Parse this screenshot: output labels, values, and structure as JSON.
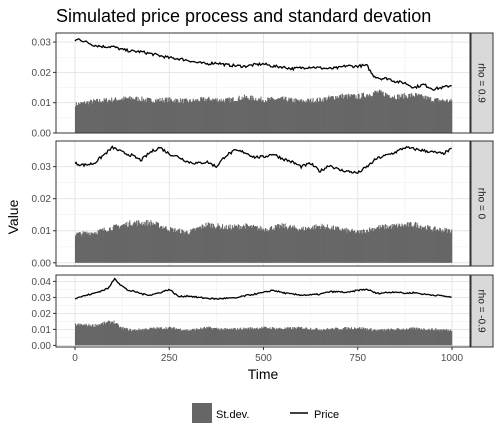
{
  "chart_data": {
    "type": "bar+line",
    "title": "Simulated price process and standard devation",
    "xlabel": "Time",
    "ylabel": "Value",
    "x_ticks": [
      0,
      250,
      500,
      750,
      1000
    ],
    "xlim": [
      0,
      1000
    ],
    "grid": true,
    "legend": {
      "position": "bottom",
      "entries": [
        {
          "name": "St.dev.",
          "kind": "bar",
          "color": "#666666"
        },
        {
          "name": "Price",
          "kind": "line",
          "color": "#000000"
        }
      ]
    },
    "panels": [
      {
        "strip_label": "rho = 0.9",
        "ylim": [
          0,
          0.033
        ],
        "y_ticks": [
          "0.00",
          "0.01",
          "0.02",
          "0.03"
        ],
        "y_tick_values": [
          0,
          0.01,
          0.02,
          0.03
        ],
        "price": {
          "x": [
            0,
            10,
            30,
            50,
            75,
            100,
            125,
            150,
            175,
            200,
            225,
            250,
            275,
            300,
            325,
            350,
            375,
            400,
            425,
            450,
            475,
            500,
            525,
            550,
            575,
            600,
            625,
            650,
            675,
            700,
            720,
            740,
            760,
            775,
            790,
            810,
            830,
            850,
            875,
            900,
            925,
            950,
            975,
            1000
          ],
          "values": [
            0.0305,
            0.031,
            0.03,
            0.029,
            0.0285,
            0.0285,
            0.0275,
            0.027,
            0.0268,
            0.0262,
            0.0255,
            0.0248,
            0.0245,
            0.024,
            0.0232,
            0.0228,
            0.0232,
            0.0225,
            0.0222,
            0.022,
            0.0225,
            0.0228,
            0.022,
            0.0218,
            0.0212,
            0.0215,
            0.0218,
            0.0215,
            0.0212,
            0.0215,
            0.0222,
            0.022,
            0.0222,
            0.0222,
            0.019,
            0.018,
            0.018,
            0.017,
            0.0165,
            0.015,
            0.016,
            0.0145,
            0.015,
            0.0158
          ]
        },
        "stdev": {
          "x": [
            0,
            50,
            100,
            150,
            200,
            250,
            300,
            350,
            400,
            450,
            500,
            550,
            600,
            650,
            700,
            750,
            800,
            850,
            900,
            950,
            1000
          ],
          "values": [
            0.0095,
            0.0105,
            0.011,
            0.0115,
            0.0108,
            0.011,
            0.0105,
            0.0112,
            0.0108,
            0.0118,
            0.011,
            0.0112,
            0.0105,
            0.011,
            0.0122,
            0.012,
            0.0135,
            0.012,
            0.0125,
            0.011,
            0.0105
          ]
        }
      },
      {
        "strip_label": "rho = 0",
        "ylim": [
          -0.001,
          0.038
        ],
        "y_ticks": [
          "0.00",
          "0.01",
          "0.02",
          "0.03"
        ],
        "y_tick_values": [
          0,
          0.01,
          0.02,
          0.03
        ],
        "price": {
          "x": [
            0,
            25,
            50,
            75,
            100,
            125,
            150,
            175,
            200,
            225,
            250,
            275,
            300,
            325,
            350,
            375,
            400,
            425,
            450,
            475,
            500,
            525,
            550,
            575,
            600,
            625,
            650,
            675,
            700,
            725,
            750,
            775,
            800,
            825,
            850,
            875,
            900,
            925,
            950,
            975,
            1000
          ],
          "values": [
            0.031,
            0.0305,
            0.031,
            0.0335,
            0.036,
            0.0345,
            0.0335,
            0.032,
            0.0345,
            0.036,
            0.034,
            0.033,
            0.0315,
            0.031,
            0.0315,
            0.03,
            0.0335,
            0.035,
            0.0345,
            0.033,
            0.033,
            0.034,
            0.0325,
            0.0315,
            0.03,
            0.031,
            0.0285,
            0.0305,
            0.029,
            0.0285,
            0.028,
            0.03,
            0.0325,
            0.0335,
            0.0345,
            0.036,
            0.0355,
            0.035,
            0.0345,
            0.034,
            0.0355
          ]
        },
        "stdev": {
          "x": [
            0,
            50,
            100,
            150,
            200,
            250,
            300,
            350,
            400,
            450,
            500,
            550,
            600,
            650,
            700,
            750,
            800,
            850,
            900,
            950,
            1000
          ],
          "values": [
            0.009,
            0.0095,
            0.011,
            0.0125,
            0.0125,
            0.0105,
            0.0095,
            0.012,
            0.011,
            0.0115,
            0.0105,
            0.0115,
            0.0105,
            0.0115,
            0.0105,
            0.0095,
            0.011,
            0.0115,
            0.012,
            0.0105,
            0.01
          ]
        }
      },
      {
        "strip_label": "rho = -0.9",
        "ylim": [
          -0.001,
          0.044
        ],
        "y_ticks": [
          "0.00",
          "0.01",
          "0.02",
          "0.03",
          "0.04"
        ],
        "y_tick_values": [
          0,
          0.01,
          0.02,
          0.03,
          0.04
        ],
        "price": {
          "x": [
            0,
            25,
            50,
            75,
            90,
            105,
            120,
            140,
            160,
            180,
            200,
            225,
            250,
            275,
            300,
            325,
            350,
            375,
            400,
            425,
            450,
            475,
            500,
            525,
            550,
            575,
            600,
            625,
            650,
            675,
            700,
            725,
            750,
            775,
            800,
            825,
            850,
            875,
            900,
            925,
            950,
            975,
            1000
          ],
          "values": [
            0.0295,
            0.031,
            0.0325,
            0.0345,
            0.036,
            0.042,
            0.038,
            0.0345,
            0.0335,
            0.032,
            0.0315,
            0.033,
            0.035,
            0.0305,
            0.031,
            0.03,
            0.0295,
            0.029,
            0.0295,
            0.0295,
            0.031,
            0.032,
            0.033,
            0.0345,
            0.033,
            0.032,
            0.0315,
            0.0315,
            0.032,
            0.0335,
            0.0335,
            0.033,
            0.0345,
            0.035,
            0.0325,
            0.033,
            0.0335,
            0.0325,
            0.033,
            0.032,
            0.0315,
            0.031,
            0.03
          ]
        },
        "stdev": {
          "x": [
            0,
            50,
            100,
            120,
            150,
            200,
            250,
            300,
            350,
            400,
            450,
            500,
            550,
            600,
            650,
            700,
            750,
            800,
            850,
            900,
            950,
            1000
          ],
          "values": [
            0.013,
            0.0125,
            0.015,
            0.011,
            0.0095,
            0.0105,
            0.011,
            0.0095,
            0.011,
            0.01,
            0.0105,
            0.011,
            0.0105,
            0.011,
            0.01,
            0.0105,
            0.011,
            0.0095,
            0.01,
            0.0105,
            0.01,
            0.0095
          ]
        }
      }
    ]
  }
}
